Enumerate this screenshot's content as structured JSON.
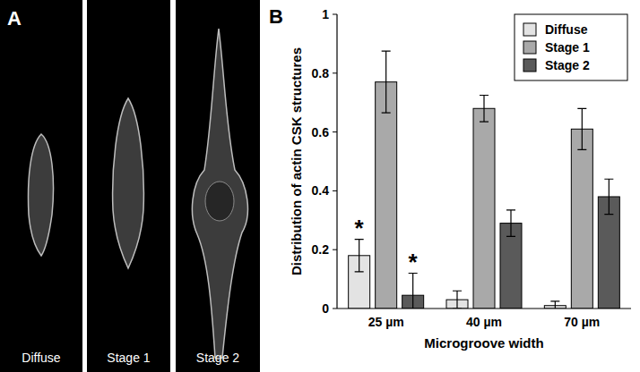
{
  "panel_a": {
    "label": "A",
    "captions": [
      "Diffuse",
      "Stage 1",
      "Stage 2"
    ]
  },
  "panel_b": {
    "label": "B"
  },
  "chart_data": {
    "type": "bar",
    "x_label": "Microgroove width",
    "y_label": "Distribution of actin CSK structures",
    "categories": [
      "25 µm",
      "40 µm",
      "70 µm"
    ],
    "series": [
      {
        "name": "Diffuse",
        "color": "#e3e3e3",
        "values": [
          0.18,
          0.03,
          0.01
        ],
        "errors": [
          0.055,
          0.03,
          0.015
        ]
      },
      {
        "name": "Stage 1",
        "color": "#a9a9a9",
        "values": [
          0.77,
          0.68,
          0.61
        ],
        "errors": [
          0.105,
          0.045,
          0.07
        ]
      },
      {
        "name": "Stage 2",
        "color": "#5a5a5a",
        "values": [
          0.045,
          0.29,
          0.38
        ],
        "errors": [
          0.075,
          0.045,
          0.06
        ]
      }
    ],
    "annotations": [
      {
        "text": "*",
        "series": 0,
        "index": 0
      },
      {
        "text": "*",
        "series": 2,
        "index": 0
      }
    ],
    "ylim": [
      0,
      1
    ],
    "yticks": [
      0,
      0.2,
      0.4,
      0.6,
      0.8,
      1
    ],
    "grid": false,
    "legend": "top-right"
  }
}
